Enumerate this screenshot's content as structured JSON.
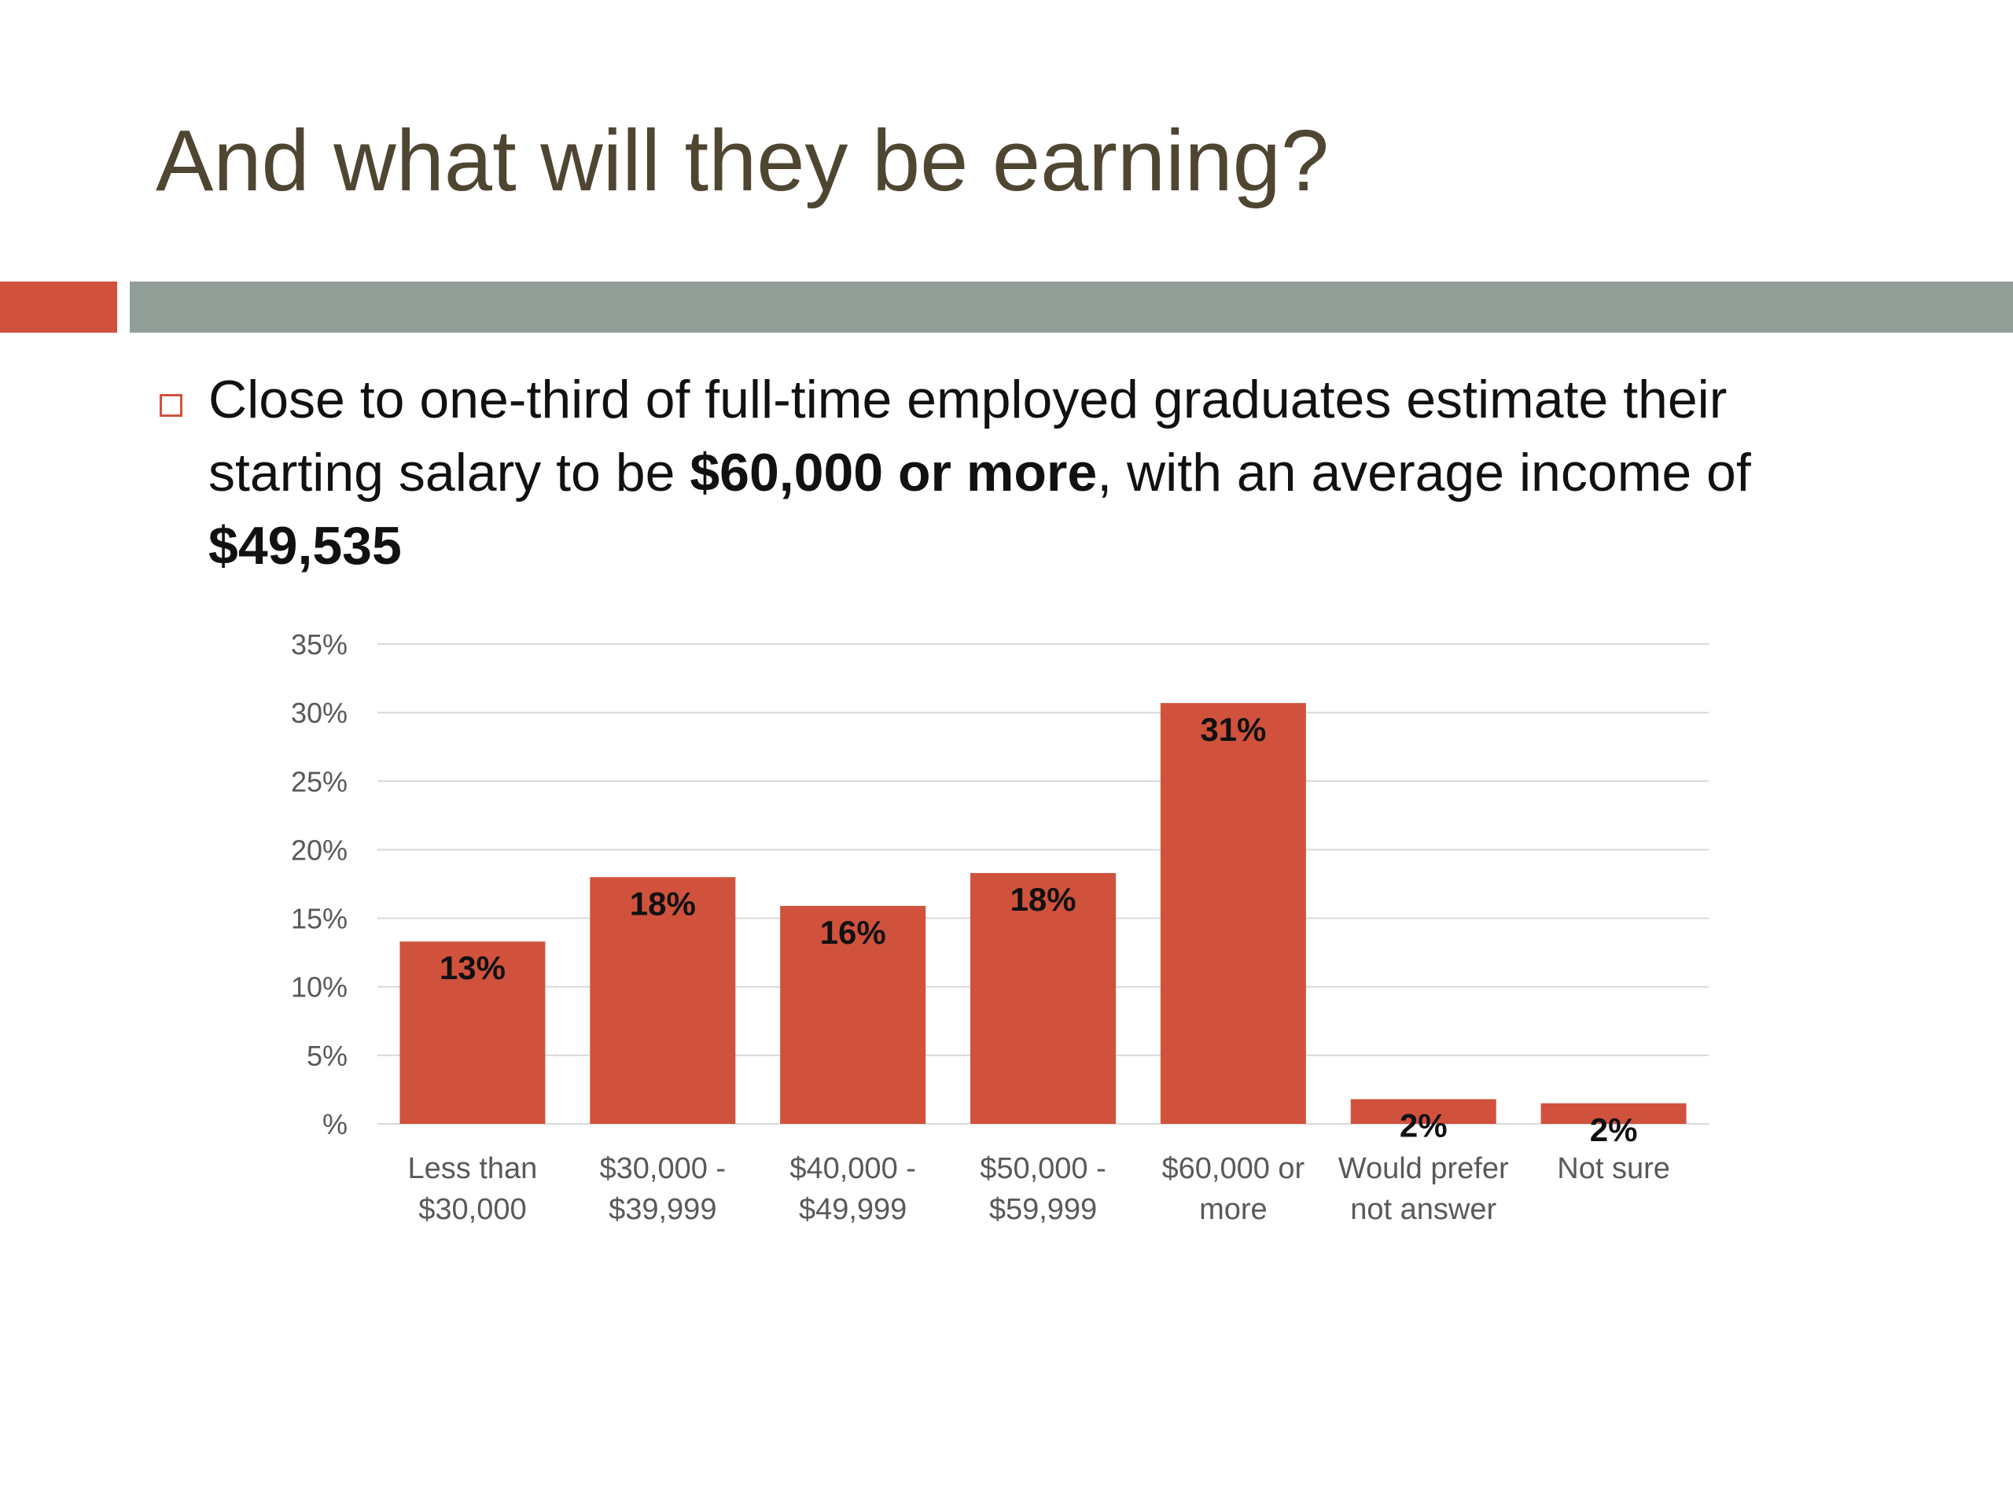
{
  "slide": {
    "title": "And what will they be earning?",
    "bullet": {
      "text_1": "Close to one-third of full-time employed graduates estimate their starting salary to be ",
      "bold_1": "$60,000 or more",
      "text_2": ", with an average income of ",
      "bold_2": "$49,535"
    }
  },
  "colors": {
    "title": "#4f4632",
    "accent": "#d0523d",
    "rule": "#929f98",
    "bar": "#d0523d",
    "grid": "#d9d9d9"
  },
  "chart_data": {
    "type": "bar",
    "categories": [
      [
        "Less than",
        "$30,000"
      ],
      [
        "$30,000 -",
        "$39,999"
      ],
      [
        "$40,000 -",
        "$49,999"
      ],
      [
        "$50,000 -",
        "$59,999"
      ],
      [
        "$60,000 or",
        "more"
      ],
      [
        "Would prefer",
        "not answer"
      ],
      [
        "Not sure"
      ]
    ],
    "values": [
      13.3,
      18.0,
      15.9,
      18.3,
      30.7,
      1.8,
      1.5
    ],
    "data_labels": [
      "13%",
      "18%",
      "16%",
      "18%",
      "31%",
      "2%",
      "2%"
    ],
    "y_ticks": [
      0,
      5,
      10,
      15,
      20,
      25,
      30,
      35
    ],
    "y_tick_labels": [
      "%",
      "5%",
      "10%",
      "15%",
      "20%",
      "25%",
      "30%",
      "35%"
    ],
    "ylim": [
      0,
      35
    ],
    "grid": true,
    "legend": "none"
  }
}
